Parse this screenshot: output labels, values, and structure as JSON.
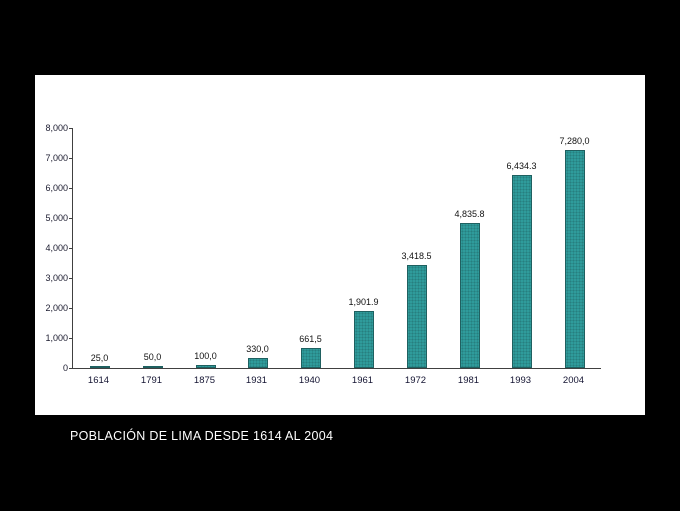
{
  "caption": "POBLACIÓN DE LIMA DESDE 1614 AL 2004",
  "chart_data": {
    "type": "bar",
    "title": "",
    "xlabel": "",
    "ylabel": "",
    "categories": [
      "1614",
      "1791",
      "1875",
      "1931",
      "1940",
      "1961",
      "1972",
      "1981",
      "1993",
      "2004"
    ],
    "values": [
      25.0,
      50.0,
      100.0,
      330.0,
      661.5,
      1901.9,
      3418.5,
      4835.8,
      6434.3,
      7280.0
    ],
    "value_labels": [
      "25,0",
      "50,0",
      "100,0",
      "330,0",
      "661,5",
      "1,901.9",
      "3,418.5",
      "4,835.8",
      "6,434.3",
      "7,280,0"
    ],
    "y_tick_labels": [
      "8,000",
      "7,000",
      "6,000",
      "5,000",
      "4,000",
      "3,000",
      "2,000",
      "1,000",
      "0"
    ],
    "ylim": [
      0,
      8000
    ],
    "grid": false,
    "legend": false,
    "bar_color": "#2f9b9b",
    "background_color": "#ffffff",
    "page_background": "#000000"
  }
}
